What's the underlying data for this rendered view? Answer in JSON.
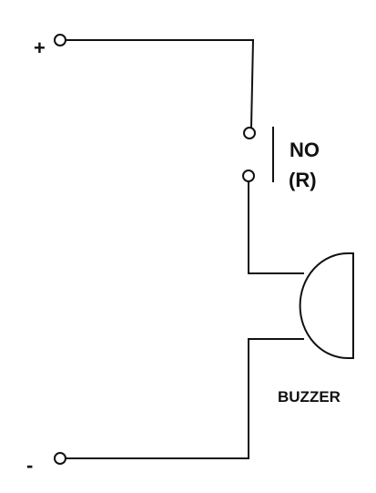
{
  "diagram": {
    "positive_terminal_label": "+",
    "negative_terminal_label": "-",
    "contact_label_line1": "NO",
    "contact_label_line2": "(R)",
    "buzzer_label": "BUZZER"
  }
}
